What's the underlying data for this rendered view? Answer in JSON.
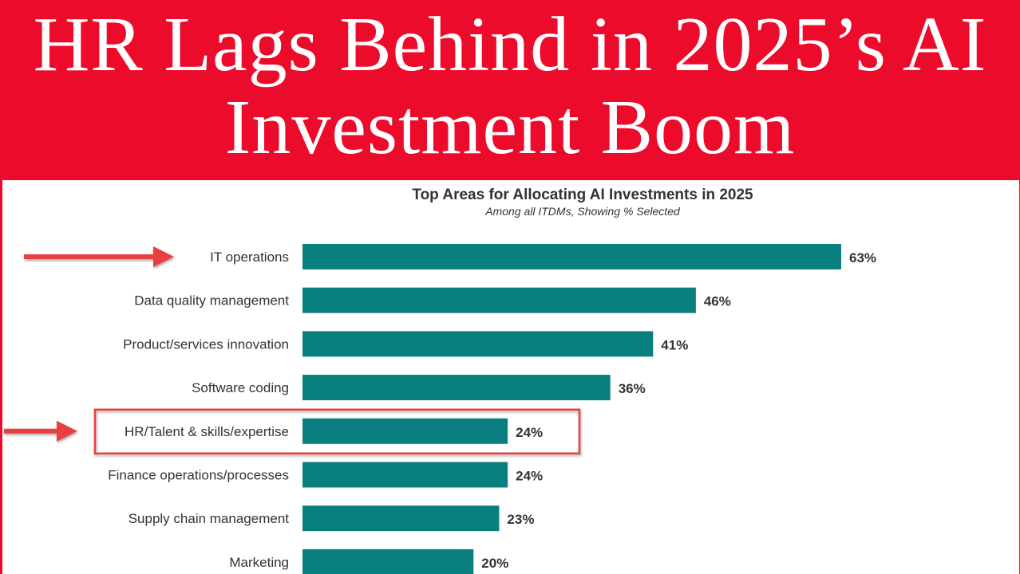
{
  "banner": {
    "line1": "HR Lags Behind in 2025’s AI",
    "line2": "Investment Boom",
    "color": "#ec0b2a"
  },
  "chart_data": {
    "type": "bar",
    "orientation": "horizontal",
    "title": "Top Areas for Allocating AI Investments in 2025",
    "subtitle": "Among all ITDMs, Showing % Selected",
    "categories": [
      "IT operations",
      "Data quality management",
      "Product/services innovation",
      "Software coding",
      "HR/Talent & skills/expertise",
      "Finance operations/processes",
      "Supply chain management",
      "Marketing"
    ],
    "values": [
      63,
      46,
      41,
      36,
      24,
      24,
      23,
      20
    ],
    "value_labels": [
      "63%",
      "46%",
      "41%",
      "36%",
      "24%",
      "24%",
      "23%",
      "20%"
    ],
    "bar_color": "#0a7f7f",
    "grid": false,
    "annotations": {
      "arrows": [
        "IT operations",
        "HR/Talent & skills/expertise"
      ],
      "highlight_box": "HR/Talent & skills/expertise",
      "annotation_color": "#e8403f"
    }
  }
}
